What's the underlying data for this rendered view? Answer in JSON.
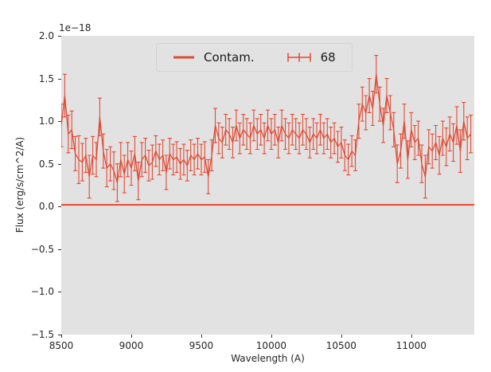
{
  "figure": {
    "offset_text": "1e−18",
    "xlabel": "Wavelength (A)",
    "ylabel": "Flux (erg/s/cm^2/A)"
  },
  "legend": {
    "position": "upper center",
    "items": [
      {
        "label": "Contam.",
        "glyph": "line"
      },
      {
        "label": "68",
        "glyph": "errorbar"
      }
    ]
  },
  "colors": {
    "series": "#E24A33",
    "axes_background": "#E2E2E2",
    "figure_background": "#FFFFFF",
    "tick": "#333333",
    "text": "#262626"
  },
  "chart_data": {
    "type": "line",
    "subtype": "errorbar-spectrum",
    "title": "",
    "xlabel": "Wavelength (A)",
    "ylabel": "Flux (erg/s/cm^2/A)",
    "y_offset_factor": "1e−18",
    "xlim": [
      8500,
      11450
    ],
    "ylim": [
      -1.5,
      2.0
    ],
    "x_ticks": [
      8500,
      9000,
      9500,
      10000,
      10500,
      11000
    ],
    "x_tick_labels": [
      "8500",
      "9000",
      "9500",
      "10000",
      "10500",
      "11000"
    ],
    "y_ticks": [
      -1.5,
      -1.0,
      -0.5,
      0.0,
      0.5,
      1.0,
      1.5,
      2.0
    ],
    "y_tick_labels": [
      "−1.5",
      "−1.0",
      "−0.5",
      "0.0",
      "0.5",
      "1.0",
      "1.5",
      "2.0"
    ],
    "grid": false,
    "legend_position": "upper center",
    "series": [
      {
        "name": "68",
        "type": "errorbar",
        "color": "#E24A33",
        "x": [
          8500,
          8525,
          8550,
          8575,
          8600,
          8625,
          8650,
          8675,
          8700,
          8725,
          8750,
          8775,
          8800,
          8825,
          8850,
          8875,
          8900,
          8925,
          8950,
          8975,
          9000,
          9025,
          9050,
          9075,
          9100,
          9125,
          9150,
          9175,
          9200,
          9225,
          9250,
          9275,
          9300,
          9325,
          9350,
          9375,
          9400,
          9425,
          9450,
          9475,
          9500,
          9525,
          9550,
          9575,
          9600,
          9625,
          9650,
          9675,
          9700,
          9725,
          9750,
          9775,
          9800,
          9825,
          9850,
          9875,
          9900,
          9925,
          9950,
          9975,
          10000,
          10025,
          10050,
          10075,
          10100,
          10125,
          10150,
          10175,
          10200,
          10225,
          10250,
          10275,
          10300,
          10325,
          10350,
          10375,
          10400,
          10425,
          10450,
          10475,
          10500,
          10525,
          10550,
          10575,
          10600,
          10625,
          10650,
          10675,
          10700,
          10725,
          10750,
          10775,
          10800,
          10825,
          10850,
          10875,
          10900,
          10925,
          10950,
          10975,
          11000,
          11025,
          11050,
          11075,
          11100,
          11125,
          11150,
          11175,
          11200,
          11225,
          11250,
          11275,
          11300,
          11325,
          11350,
          11375,
          11400,
          11425
        ],
        "y": [
          0.95,
          1.3,
          0.85,
          0.9,
          0.62,
          0.55,
          0.52,
          0.6,
          0.35,
          0.6,
          0.55,
          1.05,
          0.65,
          0.45,
          0.5,
          0.42,
          0.28,
          0.55,
          0.38,
          0.55,
          0.45,
          0.62,
          0.3,
          0.55,
          0.6,
          0.48,
          0.52,
          0.65,
          0.55,
          0.6,
          0.4,
          0.62,
          0.55,
          0.58,
          0.5,
          0.55,
          0.48,
          0.6,
          0.55,
          0.62,
          0.55,
          0.58,
          0.35,
          0.6,
          0.95,
          0.8,
          0.75,
          0.9,
          0.85,
          0.75,
          0.95,
          0.8,
          0.9,
          0.85,
          0.8,
          0.95,
          0.85,
          0.9,
          0.8,
          0.95,
          0.85,
          0.9,
          0.75,
          0.95,
          0.85,
          0.8,
          0.9,
          0.85,
          0.8,
          0.9,
          0.85,
          0.75,
          0.85,
          0.8,
          0.9,
          0.8,
          0.85,
          0.75,
          0.8,
          0.7,
          0.75,
          0.6,
          0.55,
          0.65,
          0.6,
          1.0,
          1.2,
          1.1,
          1.3,
          1.15,
          1.55,
          1.2,
          0.95,
          1.3,
          1.1,
          0.9,
          0.5,
          0.65,
          1.0,
          0.55,
          0.9,
          0.75,
          0.8,
          0.5,
          0.35,
          0.7,
          0.65,
          0.75,
          0.6,
          0.8,
          0.7,
          0.85,
          0.75,
          0.95,
          0.65,
          1.0,
          0.8,
          0.85
        ],
        "yerr": [
          0.25,
          0.25,
          0.22,
          0.22,
          0.2,
          0.28,
          0.22,
          0.2,
          0.25,
          0.22,
          0.2,
          0.22,
          0.2,
          0.22,
          0.2,
          0.22,
          0.22,
          0.2,
          0.22,
          0.2,
          0.2,
          0.2,
          0.22,
          0.2,
          0.2,
          0.18,
          0.2,
          0.18,
          0.18,
          0.18,
          0.2,
          0.18,
          0.18,
          0.18,
          0.18,
          0.18,
          0.18,
          0.18,
          0.18,
          0.18,
          0.18,
          0.18,
          0.2,
          0.18,
          0.2,
          0.18,
          0.18,
          0.18,
          0.18,
          0.18,
          0.18,
          0.18,
          0.18,
          0.18,
          0.18,
          0.18,
          0.18,
          0.18,
          0.18,
          0.18,
          0.18,
          0.18,
          0.18,
          0.18,
          0.18,
          0.18,
          0.18,
          0.18,
          0.18,
          0.18,
          0.18,
          0.18,
          0.18,
          0.18,
          0.18,
          0.18,
          0.18,
          0.18,
          0.18,
          0.18,
          0.18,
          0.18,
          0.18,
          0.18,
          0.18,
          0.2,
          0.2,
          0.2,
          0.2,
          0.2,
          0.22,
          0.2,
          0.2,
          0.2,
          0.2,
          0.2,
          0.22,
          0.2,
          0.2,
          0.22,
          0.2,
          0.2,
          0.2,
          0.22,
          0.25,
          0.2,
          0.2,
          0.2,
          0.22,
          0.2,
          0.22,
          0.2,
          0.22,
          0.22,
          0.25,
          0.22,
          0.25,
          0.22
        ]
      },
      {
        "name": "Contam.",
        "type": "line",
        "color": "#E24A33",
        "y_constant": 0.02
      }
    ]
  }
}
